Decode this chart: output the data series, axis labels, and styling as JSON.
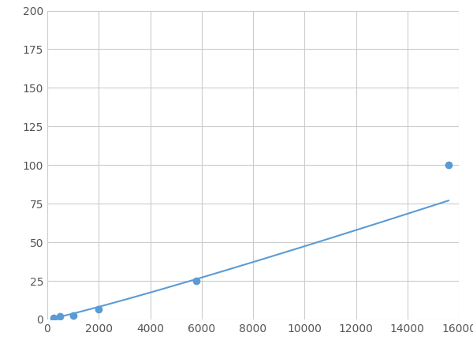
{
  "x": [
    250,
    500,
    1000,
    2000,
    5800,
    15600
  ],
  "y": [
    1.2,
    1.8,
    2.8,
    6.5,
    25.0,
    100.0
  ],
  "line_color": "#5b9bd5",
  "marker_color": "#5b9bd5",
  "marker_size": 6,
  "xlim": [
    0,
    16000
  ],
  "ylim": [
    0,
    200
  ],
  "xticks": [
    0,
    2000,
    4000,
    6000,
    8000,
    10000,
    12000,
    14000,
    16000
  ],
  "yticks": [
    0,
    25,
    50,
    75,
    100,
    125,
    150,
    175,
    200
  ],
  "grid_color": "#cccccc",
  "background_color": "#ffffff",
  "linewidth": 1.5,
  "figsize": [
    6.0,
    4.5
  ],
  "dpi": 100
}
